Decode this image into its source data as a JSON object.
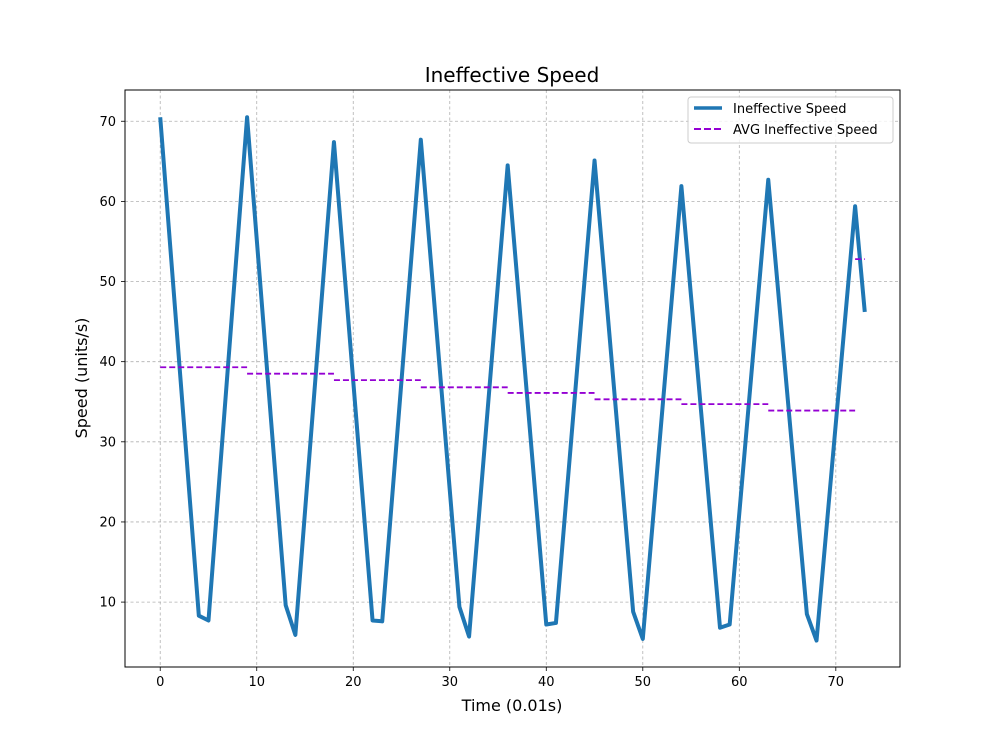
{
  "chart_data": {
    "type": "line",
    "title": "Ineffective Speed",
    "xlabel": "Time (0.01s)",
    "ylabel": "Speed (units/s)",
    "xlim": [
      -3.65,
      76.65
    ],
    "ylim": [
      1.9,
      73.9
    ],
    "xticks": [
      0,
      10,
      20,
      30,
      40,
      50,
      60,
      70
    ],
    "yticks": [
      10,
      20,
      30,
      40,
      50,
      60,
      70
    ],
    "grid": true,
    "legend_position": "top-right",
    "series": [
      {
        "name": "Ineffective Speed",
        "style": "solid",
        "color": "#1f77b4",
        "points": [
          [
            0,
            70.5
          ],
          [
            4,
            8.3
          ],
          [
            5,
            7.7
          ],
          [
            9,
            70.5
          ],
          [
            13,
            9.6
          ],
          [
            14,
            5.9
          ],
          [
            18,
            67.4
          ],
          [
            22,
            7.7
          ],
          [
            23,
            7.6
          ],
          [
            27,
            67.7
          ],
          [
            31,
            9.4
          ],
          [
            32,
            5.7
          ],
          [
            36,
            64.5
          ],
          [
            40,
            7.2
          ],
          [
            41,
            7.4
          ],
          [
            45,
            65.1
          ],
          [
            49,
            8.8
          ],
          [
            50,
            5.4
          ],
          [
            54,
            61.9
          ],
          [
            58,
            6.8
          ],
          [
            59,
            7.2
          ],
          [
            63,
            62.7
          ],
          [
            67,
            8.5
          ],
          [
            68,
            5.2
          ],
          [
            72,
            59.4
          ],
          [
            73,
            46.2
          ]
        ]
      },
      {
        "name": "AVG Ineffective Speed",
        "style": "dashed",
        "color": "#9400d3",
        "segments": [
          {
            "x0": 0,
            "x1": 9,
            "y": 39.3
          },
          {
            "x0": 9,
            "x1": 18,
            "y": 38.5
          },
          {
            "x0": 18,
            "x1": 27,
            "y": 37.7
          },
          {
            "x0": 27,
            "x1": 36,
            "y": 36.8
          },
          {
            "x0": 36,
            "x1": 45,
            "y": 36.1
          },
          {
            "x0": 45,
            "x1": 54,
            "y": 35.3
          },
          {
            "x0": 54,
            "x1": 63,
            "y": 34.7
          },
          {
            "x0": 63,
            "x1": 72,
            "y": 33.9
          },
          {
            "x0": 72,
            "x1": 73,
            "y": 52.8
          }
        ]
      }
    ]
  }
}
